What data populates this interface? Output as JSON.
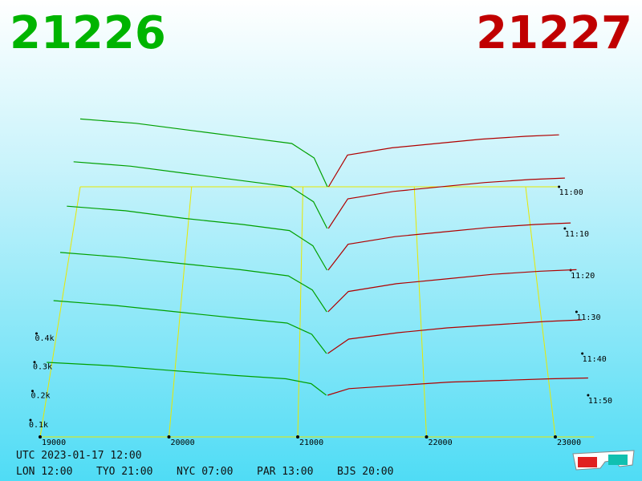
{
  "header": {
    "bid": "21226",
    "ask": "21227"
  },
  "chart_data": {
    "type": "depth3d",
    "xlim": [
      19000,
      23300
    ],
    "xticks": [
      19000,
      20000,
      21000,
      22000,
      23000
    ],
    "ylim": [
      0,
      500
    ],
    "yticks": [
      {
        "value": 100,
        "label": "0.1k"
      },
      {
        "value": 200,
        "label": "0.2k"
      },
      {
        "value": 300,
        "label": "0.3k"
      },
      {
        "value": 400,
        "label": "0.4k"
      }
    ],
    "categories": [
      "11:00",
      "11:10",
      "11:20",
      "11:30",
      "11:40",
      "11:50"
    ],
    "series": [
      {
        "color": "#00a000",
        "x": [
          19000,
          19500,
          20000,
          20500,
          20900,
          21100,
          21220
        ],
        "values": [
          [
            470,
            440,
            390,
            340,
            300,
            200,
            0
          ],
          [
            450,
            420,
            370,
            320,
            280,
            180,
            0
          ],
          [
            420,
            390,
            340,
            300,
            260,
            160,
            0
          ],
          [
            380,
            350,
            310,
            270,
            230,
            140,
            0
          ],
          [
            330,
            300,
            260,
            220,
            190,
            120,
            0
          ],
          [
            200,
            180,
            150,
            120,
            100,
            70,
            0
          ]
        ]
      },
      {
        "color": "#b00000",
        "x": [
          21230,
          21400,
          21800,
          22200,
          22600,
          23000,
          23300
        ],
        "values": [
          [
            0,
            220,
            270,
            300,
            330,
            350,
            360
          ],
          [
            0,
            200,
            250,
            280,
            310,
            330,
            340
          ],
          [
            0,
            170,
            220,
            250,
            280,
            300,
            310
          ],
          [
            0,
            130,
            180,
            210,
            240,
            260,
            270
          ],
          [
            0,
            90,
            130,
            160,
            180,
            200,
            210
          ],
          [
            0,
            40,
            60,
            80,
            90,
            100,
            105
          ]
        ]
      }
    ]
  },
  "footer": {
    "utc": "UTC 2023-01-17 12:00",
    "cities": [
      "LON 12:00",
      "TYO 21:00",
      "NYC 07:00",
      "PAR 13:00",
      "BJS 20:00"
    ]
  }
}
